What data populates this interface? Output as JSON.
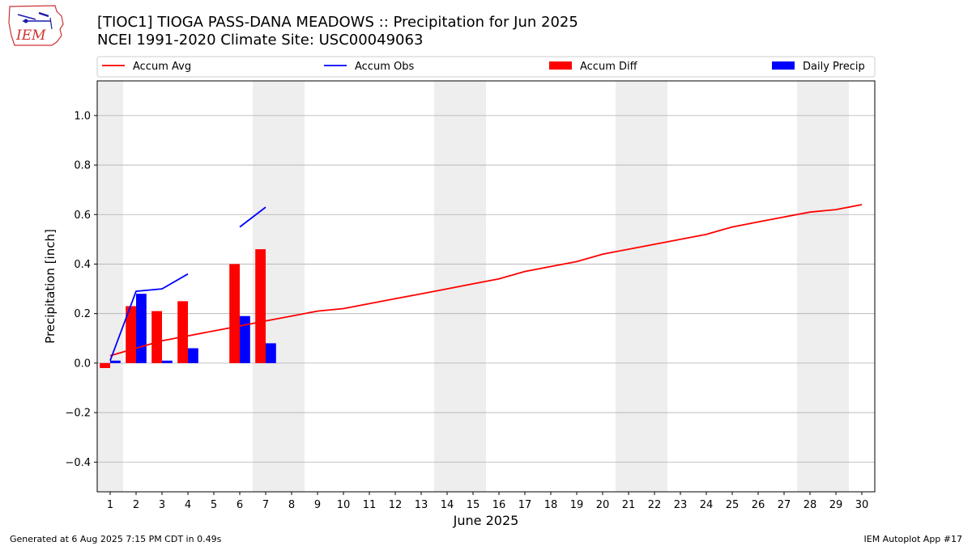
{
  "page": {
    "title_line1": "[TIOC1] TIOGA PASS-DANA MEADOWS :: Precipitation for Jun 2025",
    "title_line2": "NCEI 1991-2020 Climate Site: USC00049063",
    "footer_left": "Generated at 6 Aug 2025 7:15 PM CDT in 0.49s",
    "footer_right": "IEM Autoplot App #17",
    "logo_text": "IEM"
  },
  "colors": {
    "accum_avg": "#ff0000",
    "accum_obs": "#0000ff",
    "accum_diff": "#ff0000",
    "daily_precip": "#0000ff",
    "weekend_shade": "#eeeeee",
    "grid": "#b0b0b0"
  },
  "chart_data": {
    "type": "bar",
    "xlabel": "June 2025",
    "ylabel": "Precipitation [inch]",
    "x": [
      1,
      2,
      3,
      4,
      5,
      6,
      7,
      8,
      9,
      10,
      11,
      12,
      13,
      14,
      15,
      16,
      17,
      18,
      19,
      20,
      21,
      22,
      23,
      24,
      25,
      26,
      27,
      28,
      29,
      30
    ],
    "xlim": [
      0.5,
      30.5
    ],
    "ylim": [
      -0.52,
      1.14
    ],
    "yticks": [
      -0.4,
      -0.2,
      0.0,
      0.2,
      0.4,
      0.6,
      0.8,
      1.0
    ],
    "ytick_labels": [
      "−0.4",
      "−0.2",
      "0.0",
      "0.2",
      "0.4",
      "0.6",
      "0.8",
      "1.0"
    ],
    "grid": "horizontal",
    "legend_position": "top",
    "weekend_days": [
      1,
      7,
      8,
      14,
      15,
      21,
      22,
      28,
      29
    ],
    "series": [
      {
        "name": "Accum Avg",
        "kind": "line",
        "values": [
          0.03,
          0.06,
          0.09,
          0.11,
          0.13,
          0.15,
          0.17,
          0.19,
          0.21,
          0.22,
          0.24,
          0.26,
          0.28,
          0.3,
          0.32,
          0.34,
          0.37,
          0.39,
          0.41,
          0.44,
          0.46,
          0.48,
          0.5,
          0.52,
          0.55,
          0.57,
          0.59,
          0.61,
          0.62,
          0.64
        ]
      },
      {
        "name": "Accum Obs",
        "kind": "line",
        "values": [
          0.01,
          0.29,
          0.3,
          0.36,
          null,
          0.55,
          0.63,
          null,
          null,
          null,
          null,
          null,
          null,
          null,
          null,
          null,
          null,
          null,
          null,
          null,
          null,
          null,
          null,
          null,
          null,
          null,
          null,
          null,
          null,
          null
        ]
      },
      {
        "name": "Accum Diff",
        "kind": "bar",
        "values": [
          -0.02,
          0.23,
          0.21,
          0.25,
          null,
          0.4,
          0.46,
          null,
          null,
          null,
          null,
          null,
          null,
          null,
          null,
          null,
          null,
          null,
          null,
          null,
          null,
          null,
          null,
          null,
          null,
          null,
          null,
          null,
          null,
          null
        ]
      },
      {
        "name": "Daily Precip",
        "kind": "bar",
        "values": [
          0.01,
          0.28,
          0.01,
          0.06,
          null,
          0.19,
          0.08,
          null,
          null,
          null,
          null,
          null,
          null,
          null,
          null,
          null,
          null,
          null,
          null,
          null,
          null,
          null,
          null,
          null,
          null,
          null,
          null,
          null,
          null,
          null
        ]
      }
    ]
  }
}
